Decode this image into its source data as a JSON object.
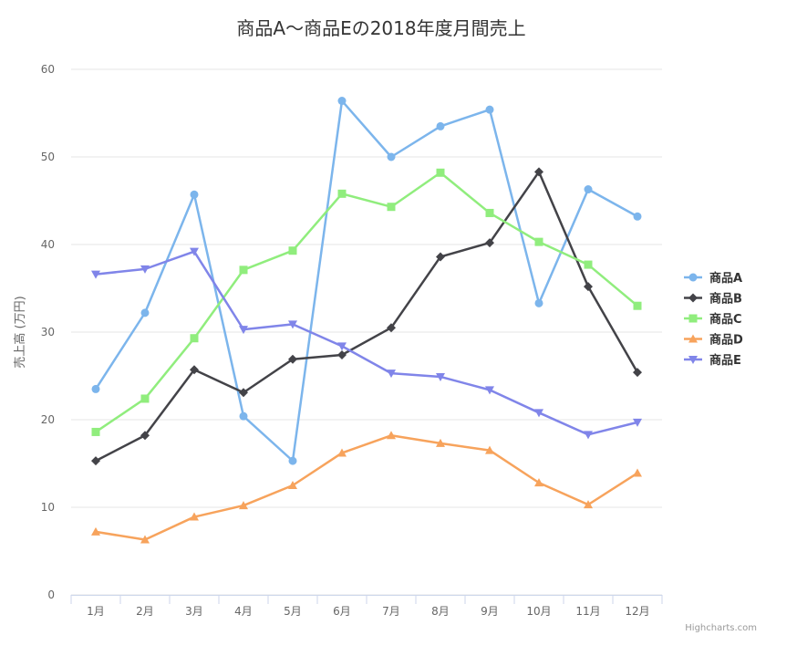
{
  "chart_data": {
    "type": "line",
    "title": "商品A～商品Eの2018年度月間売上",
    "ylabel": "売上高 (万円)",
    "ylim": [
      0,
      60
    ],
    "yticks": [
      0,
      10,
      20,
      30,
      40,
      50,
      60
    ],
    "grid": true,
    "legend_position": "right",
    "categories": [
      "1月",
      "2月",
      "3月",
      "4月",
      "5月",
      "6月",
      "7月",
      "8月",
      "9月",
      "10月",
      "11月",
      "12月"
    ],
    "series": [
      {
        "name": "商品A",
        "color": "#7cb5ec",
        "marker": "circle",
        "values": [
          23.5,
          32.2,
          45.7,
          20.4,
          15.3,
          56.4,
          50.0,
          53.5,
          55.4,
          33.3,
          46.3,
          43.2
        ]
      },
      {
        "name": "商品B",
        "color": "#434348",
        "marker": "diamond",
        "values": [
          15.3,
          18.2,
          25.7,
          23.1,
          26.9,
          27.4,
          30.5,
          38.6,
          40.2,
          48.3,
          35.2,
          25.4
        ]
      },
      {
        "name": "商品C",
        "color": "#90ed7d",
        "marker": "square",
        "values": [
          18.6,
          22.4,
          29.3,
          37.1,
          39.3,
          45.8,
          44.3,
          48.2,
          43.6,
          40.3,
          37.7,
          33.0
        ]
      },
      {
        "name": "商品D",
        "color": "#f7a35c",
        "marker": "triangle",
        "values": [
          7.2,
          6.3,
          8.9,
          10.2,
          12.5,
          16.2,
          18.2,
          17.3,
          16.5,
          12.8,
          10.3,
          13.9
        ]
      },
      {
        "name": "商品E",
        "color": "#8085e9",
        "marker": "triangle-down",
        "values": [
          36.6,
          37.2,
          39.2,
          30.3,
          30.9,
          28.4,
          25.3,
          24.9,
          23.4,
          20.8,
          18.3,
          19.7
        ]
      }
    ]
  },
  "credits": "Highcharts.com"
}
